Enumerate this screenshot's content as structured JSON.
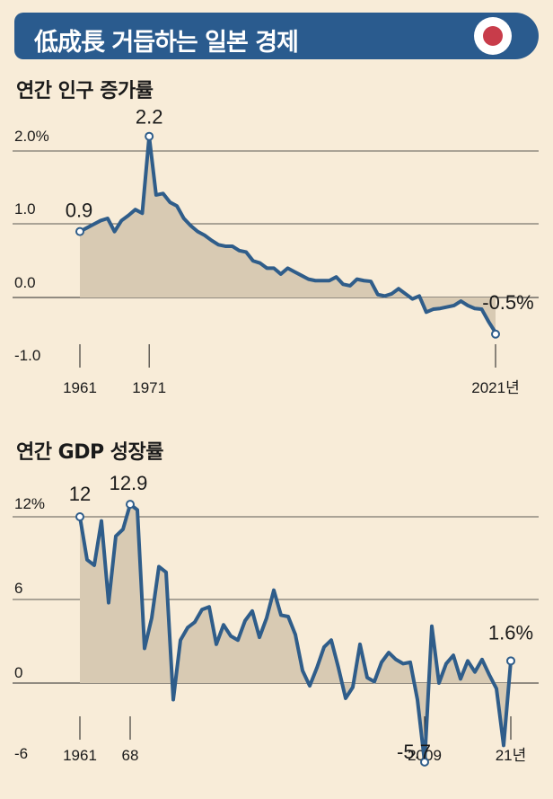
{
  "header": {
    "title": "低成長 거듭하는 일본 경제",
    "flag_icon": "japan-flag-icon"
  },
  "colors": {
    "line": "#2f5d8a",
    "area": "#d8cab3",
    "background": "#f8ecd8",
    "banner": "#2a5b8e",
    "flag_red": "#c83c4a"
  },
  "chart_data": [
    {
      "type": "area",
      "title": "연간 인구 증가률",
      "ylim": [
        -1.0,
        2.0
      ],
      "yticks": [
        "2.0%",
        "1.0",
        "0.0",
        "-1.0"
      ],
      "xticks": [
        "1961",
        "1971",
        "2021년"
      ],
      "annotations": [
        {
          "label": "0.9",
          "year": 1961,
          "value": 0.9
        },
        {
          "label": "2.2",
          "year": 1971,
          "value": 2.2
        },
        {
          "label": "-0.5%",
          "year": 2021,
          "value": -0.5
        }
      ],
      "x": [
        1961,
        1962,
        1963,
        1964,
        1965,
        1966,
        1967,
        1968,
        1969,
        1970,
        1971,
        1972,
        1973,
        1974,
        1975,
        1976,
        1977,
        1978,
        1979,
        1980,
        1981,
        1982,
        1983,
        1984,
        1985,
        1986,
        1987,
        1988,
        1989,
        1990,
        1991,
        1992,
        1993,
        1994,
        1995,
        1996,
        1997,
        1998,
        1999,
        2000,
        2001,
        2002,
        2003,
        2004,
        2005,
        2006,
        2007,
        2008,
        2009,
        2010,
        2011,
        2012,
        2013,
        2014,
        2015,
        2016,
        2017,
        2018,
        2019,
        2020,
        2021
      ],
      "values": [
        0.9,
        0.95,
        1.0,
        1.05,
        1.08,
        0.9,
        1.05,
        1.12,
        1.2,
        1.15,
        2.2,
        1.4,
        1.42,
        1.3,
        1.25,
        1.08,
        0.98,
        0.9,
        0.85,
        0.78,
        0.72,
        0.7,
        0.7,
        0.64,
        0.62,
        0.5,
        0.47,
        0.4,
        0.4,
        0.32,
        0.4,
        0.35,
        0.3,
        0.25,
        0.23,
        0.23,
        0.23,
        0.28,
        0.18,
        0.16,
        0.25,
        0.23,
        0.22,
        0.04,
        0.02,
        0.05,
        0.12,
        0.05,
        -0.02,
        0.02,
        -0.2,
        -0.16,
        -0.15,
        -0.13,
        -0.11,
        -0.05,
        -0.11,
        -0.15,
        -0.16,
        -0.33,
        -0.48
      ]
    },
    {
      "type": "area",
      "title": "연간 GDP 성장률",
      "ylim": [
        -6,
        12
      ],
      "yticks": [
        "12%",
        "6",
        "0",
        "-6"
      ],
      "xticks": [
        "1961",
        "68",
        "2009",
        "21년"
      ],
      "annotations": [
        {
          "label": "12",
          "year": 1961,
          "value": 12.0
        },
        {
          "label": "12.9",
          "year": 1968,
          "value": 12.9
        },
        {
          "label": "-5.7",
          "year": 2009,
          "value": -5.7
        },
        {
          "label": "1.6%",
          "year": 2021,
          "value": 1.6
        }
      ],
      "x": [
        1961,
        1962,
        1963,
        1964,
        1965,
        1966,
        1967,
        1968,
        1969,
        1970,
        1971,
        1972,
        1973,
        1974,
        1975,
        1976,
        1977,
        1978,
        1979,
        1980,
        1981,
        1982,
        1983,
        1984,
        1985,
        1986,
        1987,
        1988,
        1989,
        1990,
        1991,
        1992,
        1993,
        1994,
        1995,
        1996,
        1997,
        1998,
        1999,
        2000,
        2001,
        2002,
        2003,
        2004,
        2005,
        2006,
        2007,
        2008,
        2009,
        2010,
        2011,
        2012,
        2013,
        2014,
        2015,
        2016,
        2017,
        2018,
        2019,
        2020,
        2021
      ],
      "values": [
        12.0,
        8.9,
        8.5,
        11.7,
        5.8,
        10.6,
        11.1,
        12.9,
        12.5,
        2.5,
        4.7,
        8.4,
        8.0,
        -1.2,
        3.1,
        4.0,
        4.4,
        5.3,
        5.5,
        2.8,
        4.2,
        3.4,
        3.1,
        4.5,
        5.2,
        3.3,
        4.7,
        6.7,
        4.9,
        4.8,
        3.5,
        0.9,
        -0.2,
        1.1,
        2.6,
        3.1,
        1.1,
        -1.1,
        -0.3,
        2.8,
        0.4,
        0.1,
        1.5,
        2.2,
        1.7,
        1.4,
        1.5,
        -1.2,
        -5.7,
        4.1,
        0.0,
        1.4,
        2.0,
        0.3,
        1.6,
        0.8,
        1.7,
        0.6,
        -0.4,
        -4.5,
        1.6
      ]
    }
  ]
}
